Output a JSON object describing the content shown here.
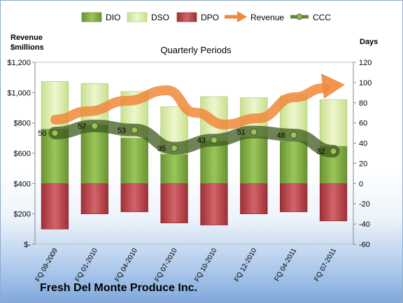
{
  "chart_data": {
    "type": "bar",
    "title": "Quarterly Periods",
    "company": "Fresh Del Monte Produce Inc.",
    "left_axis_label": [
      "Revenue",
      "$millions"
    ],
    "right_axis_label": "Days",
    "left_ticks": [
      "$-",
      "$200",
      "$400",
      "$600",
      "$800",
      "$1,000",
      "$1,200"
    ],
    "left_ylim": [
      0,
      1200
    ],
    "right_ticks": [
      "-60",
      "-40",
      "-20",
      "0",
      "20",
      "40",
      "60",
      "80",
      "100",
      "120"
    ],
    "right_ylim": [
      -60,
      120
    ],
    "categories": [
      "FQ 09-2009",
      "FQ 01-2010",
      "FQ 04-2010",
      "FQ 07-2010",
      "FQ 10-2010",
      "FQ 12-2010",
      "FQ 04-2011",
      "FQ 07-2011"
    ],
    "legend": [
      {
        "name": "DIO",
        "color": "#7fa640"
      },
      {
        "name": "DSO",
        "color": "#d9eca6"
      },
      {
        "name": "DPO",
        "color": "#b94147"
      },
      {
        "name": "Revenue",
        "color": "#f0883a"
      },
      {
        "name": "CCC",
        "color": "#4e6b28"
      }
    ],
    "series": [
      {
        "name": "DIO",
        "values": [
          54,
          58,
          45,
          29,
          42,
          46,
          42,
          37
        ]
      },
      {
        "name": "DSO",
        "values": [
          47,
          41,
          46,
          47,
          44,
          39,
          45,
          46
        ]
      },
      {
        "name": "DPO",
        "values": [
          -45,
          -30,
          -28,
          -39,
          -41,
          -30,
          -28,
          -37
        ]
      },
      {
        "name": "CCC",
        "values": [
          50,
          57,
          53,
          35,
          43,
          51,
          48,
          32
        ]
      }
    ],
    "ccc_labels": [
      "50",
      "57",
      "53",
      "35",
      "43",
      "51",
      "48",
      "32"
    ],
    "revenue_trend": "rising, dip mid-period, ending with arrow"
  }
}
